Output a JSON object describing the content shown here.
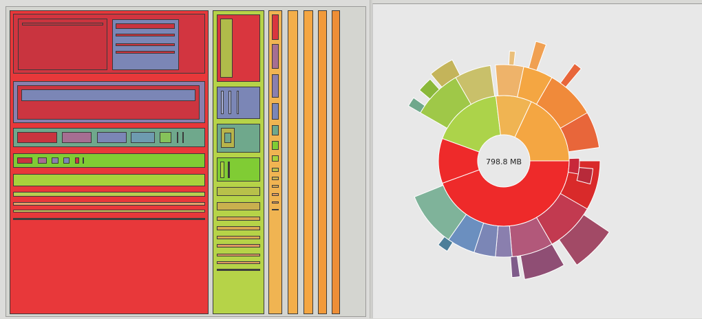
{
  "sunburst": {
    "center_label": "798.8 MB"
  },
  "colors": {
    "red": "#e8383a",
    "dark_red": "#c9343c",
    "green": "#b6d348",
    "yellow": "#f0b452",
    "orange": "#f29a3a",
    "blue_gray": "#7a88b9",
    "teal": "#6fa88c",
    "lime": "#80cc34"
  }
}
